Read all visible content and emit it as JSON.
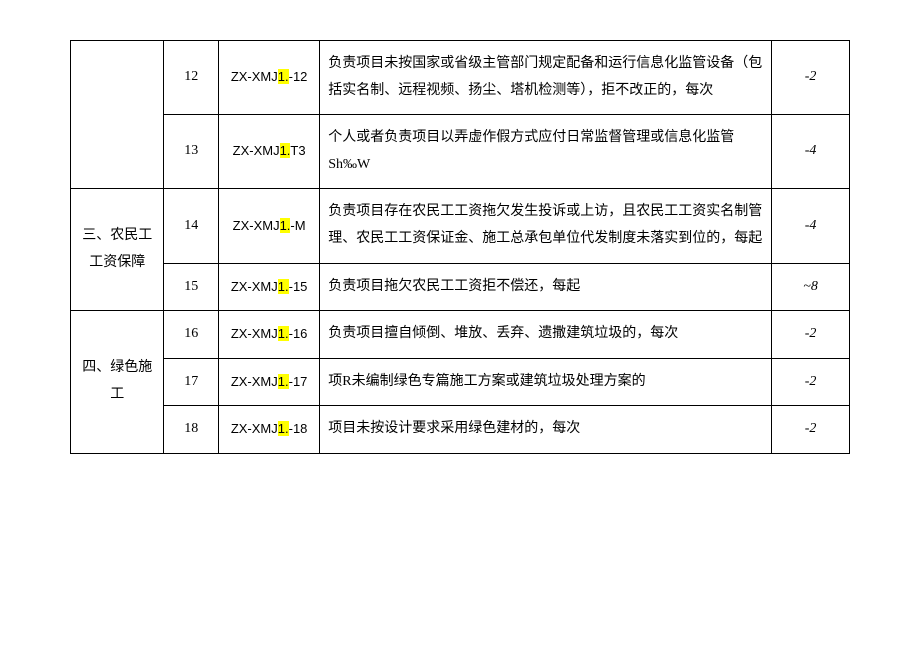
{
  "table": {
    "border_color": "#000000",
    "background_color": "#ffffff",
    "highlight_color": "#ffff00",
    "font_size": 14,
    "rows": [
      {
        "idx": "12",
        "code_prefix": "ZX-XMJ",
        "code_hl": "1.",
        "code_suffix": "-12",
        "desc": "负责项目未按国家或省级主管部门规定配备和运行信息化监管设备（包括实名制、远程视频、扬尘、塔机检测等），拒不改正的，每次",
        "score": "-2"
      },
      {
        "idx": "13",
        "code_prefix": "ZX-XMJ",
        "code_hl": "1.",
        "code_suffix": "T3",
        "desc": "个人或者负责项目以弄虚作假方式应付日常监督管理或信息化监管Sh‰W",
        "score": "-4"
      },
      {
        "idx": "14",
        "code_prefix": "ZX-XMJ",
        "code_hl": "1.",
        "code_suffix": "-M",
        "desc": "负责项目存在农民工工资拖欠发生投诉或上访，且农民工工资实名制管理、农民工工资保证金、施工总承包单位代发制度未落实到位的，每起",
        "score": "-4"
      },
      {
        "idx": "15",
        "code_prefix": "ZX-XMJ",
        "code_hl": "1.",
        "code_suffix": "-15",
        "desc": "负责项目拖欠农民工工资拒不偿还，每起",
        "score": "~8"
      },
      {
        "idx": "16",
        "code_prefix": "ZX-XMJ",
        "code_hl": "1.",
        "code_suffix": "-16",
        "desc": "负责项目擅自倾倒、堆放、丢弃、遗撒建筑垃圾的，每次",
        "score": "-2"
      },
      {
        "idx": "17",
        "code_prefix": "ZX-XMJ",
        "code_hl": "1.",
        "code_suffix": "-17",
        "desc": "项R未编制绿色专篇施工方案或建筑垃圾处理方案的",
        "score": "-2"
      },
      {
        "idx": "18",
        "code_prefix": "ZX-XMJ",
        "code_hl": "1.",
        "code_suffix": "-18",
        "desc": "项目未按设计要求采用绿色建材的，每次",
        "score": "-2"
      }
    ],
    "categories": {
      "cat3": "三、农民工工资保障",
      "cat4": "四、绿色施工"
    }
  }
}
